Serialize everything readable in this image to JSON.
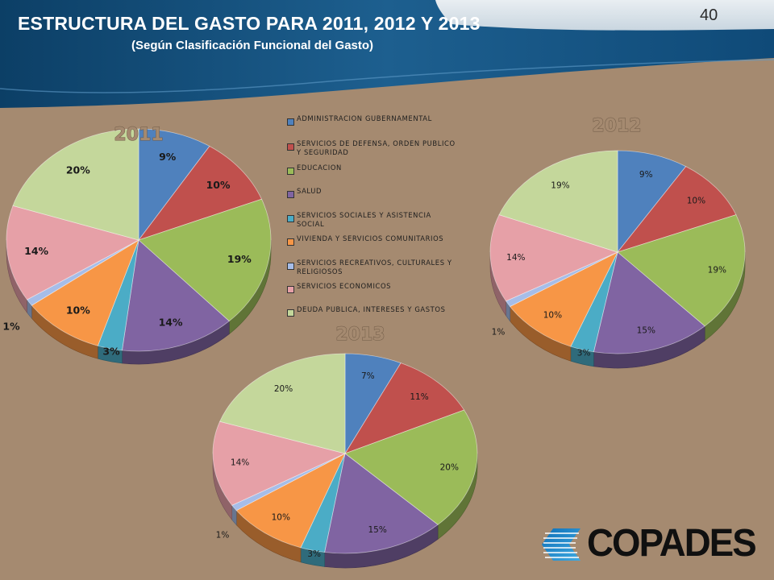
{
  "slide": {
    "title": "ESTRUCTURA DEL GASTO PARA 2011, 2012 Y 2013",
    "subtitle": "(Según Clasificación Funcional del Gasto)",
    "page_number": "40"
  },
  "logo": {
    "text": "COPADES"
  },
  "chart_data": [
    {
      "type": "pie",
      "title": "2011",
      "categories": [
        "ADMINISTRACION GUBERNAMENTAL",
        "SERVICIOS DE DEFENSA, ORDEN PUBLICO Y SEGURIDAD",
        "EDUCACION",
        "SALUD",
        "SERVICIOS SOCIALES Y ASISTENCIA SOCIAL",
        "VIVIENDA Y SERVICIOS COMUNITARIOS",
        "SERVICIOS RECREATIVOS, CULTURALES Y RELIGIOSOS",
        "SERVICIOS ECONOMICOS",
        "DEUDA PUBLICA, INTERESES Y GASTOS"
      ],
      "values": [
        9,
        10,
        19,
        14,
        3,
        10,
        1,
        14,
        20
      ],
      "labels": [
        "9%",
        "10%",
        "19%",
        "14%",
        "3%",
        "10%",
        "1%",
        "14%",
        "20%"
      ]
    },
    {
      "type": "pie",
      "title": "2012",
      "categories": [
        "ADMINISTRACION GUBERNAMENTAL",
        "SERVICIOS DE DEFENSA, ORDEN PUBLICO Y SEGURIDAD",
        "EDUCACION",
        "SALUD",
        "SERVICIOS SOCIALES Y ASISTENCIA SOCIAL",
        "VIVIENDA Y SERVICIOS COMUNITARIOS",
        "SERVICIOS RECREATIVOS, CULTURALES Y RELIGIOSOS",
        "SERVICIOS ECONOMICOS",
        "DEUDA PUBLICA, INTERESES Y GASTOS"
      ],
      "values": [
        9,
        10,
        19,
        15,
        3,
        10,
        1,
        14,
        19
      ],
      "labels": [
        "9%",
        "10%",
        "19%",
        "15%",
        "3%",
        "10%",
        "1%",
        "14%",
        "19%"
      ]
    },
    {
      "type": "pie",
      "title": "2013",
      "categories": [
        "ADMINISTRACION GUBERNAMENTAL",
        "SERVICIOS DE DEFENSA, ORDEN PUBLICO Y SEGURIDAD",
        "EDUCACION",
        "SALUD",
        "SERVICIOS SOCIALES Y ASISTENCIA SOCIAL",
        "VIVIENDA Y SERVICIOS COMUNITARIOS",
        "SERVICIOS RECREATIVOS, CULTURALES Y RELIGIOSOS",
        "SERVICIOS ECONOMICOS",
        "DEUDA PUBLICA, INTERESES Y GASTOS"
      ],
      "values": [
        7,
        11,
        20,
        15,
        3,
        10,
        1,
        14,
        20
      ],
      "labels": [
        "7%",
        "11%",
        "20%",
        "15%",
        "3%",
        "10%",
        "1%",
        "14%",
        "20%"
      ]
    }
  ],
  "legend": {
    "items": [
      {
        "label": "ADMINISTRACION GUBERNAMENTAL",
        "color": "#4f81bd"
      },
      {
        "label": "SERVICIOS DE DEFENSA, ORDEN PUBLICO Y SEGURIDAD",
        "color": "#c0504d"
      },
      {
        "label": "EDUCACION",
        "color": "#9bbb59"
      },
      {
        "label": "SALUD",
        "color": "#8064a2"
      },
      {
        "label": "SERVICIOS SOCIALES Y ASISTENCIA SOCIAL",
        "color": "#4bacc6"
      },
      {
        "label": "VIVIENDA Y SERVICIOS COMUNITARIOS",
        "color": "#f79646"
      },
      {
        "label": "SERVICIOS RECREATIVOS, CULTURALES Y RELIGIOSOS",
        "color": "#a6bde8"
      },
      {
        "label": "SERVICIOS ECONOMICOS",
        "color": "#e6a0a7"
      },
      {
        "label": "DEUDA PUBLICA, INTERESES Y GASTOS",
        "color": "#c4d79b"
      }
    ]
  }
}
